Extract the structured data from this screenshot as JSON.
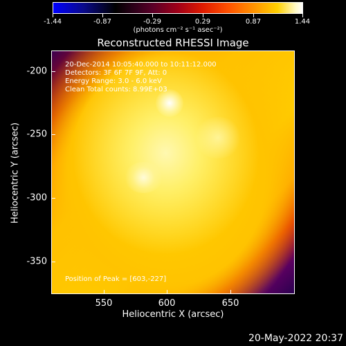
{
  "colorbar": {
    "tick_labels": [
      "-1.44",
      "-0.87",
      "-0.29",
      "0.29",
      "0.87",
      "1.44"
    ],
    "units": "(photons cm⁻² s⁻¹ asec⁻²)"
  },
  "title": "Reconstructed RHESSI Image",
  "info": {
    "line1": "20-Dec-2014 10:05:40.000 to 10:11:12.000",
    "line2": "Detectors: 3F 6F 7F 9F, Att: 0",
    "line3": "Energy Range: 3.0 - 6.0 keV",
    "line4": "Clean     Total counts: 8.99E+03",
    "peak": "Position of Peak = [603,-227]"
  },
  "axes": {
    "xlabel": "Heliocentric X (arcsec)",
    "ylabel": "Heliocentric Y (arcsec)",
    "xticks": [
      "550",
      "600",
      "650"
    ],
    "yticks": [
      "-200",
      "-250",
      "-300",
      "-350"
    ]
  },
  "timestamp": "20-May-2022 20:37",
  "colors": {
    "background": "#000000",
    "foreground": "#ffffff"
  }
}
